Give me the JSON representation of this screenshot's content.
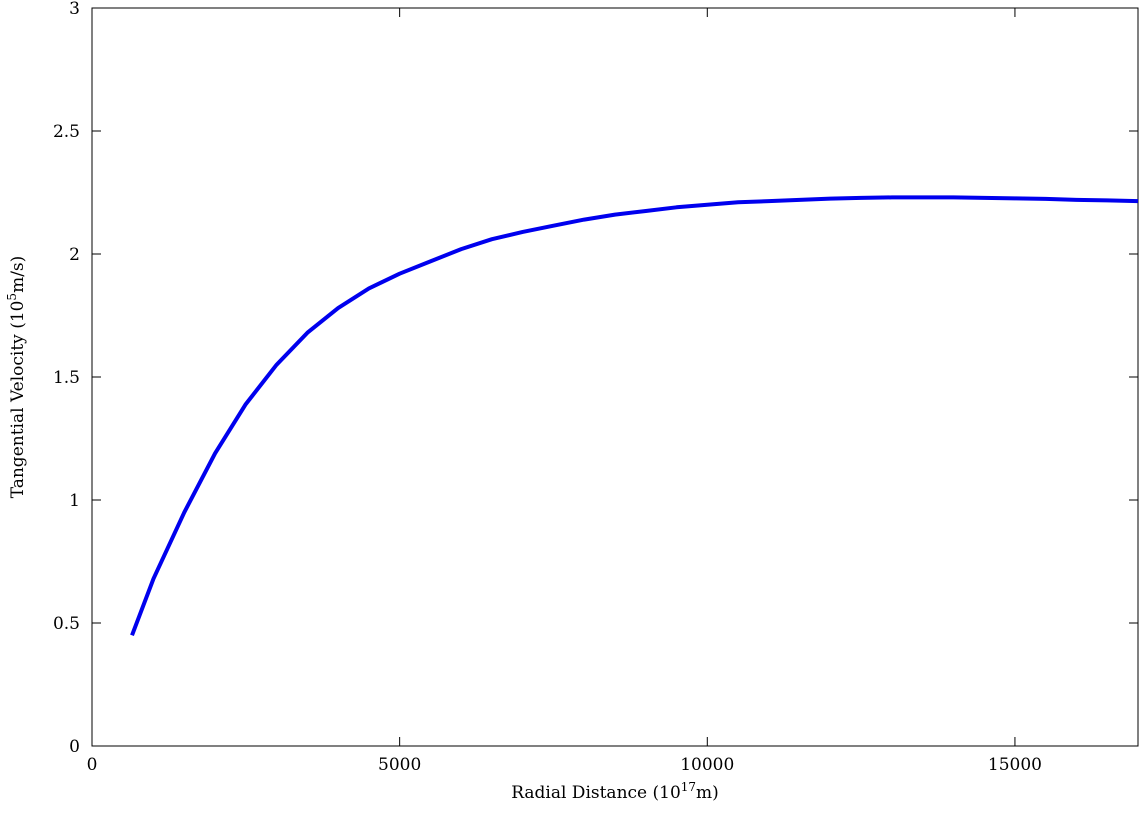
{
  "chart_data": {
    "type": "line",
    "title": "",
    "xlabel": "Radial Distance (10",
    "xlabel_sup": "17",
    "xlabel_tail": "m)",
    "ylabel": "Tangential Velocity (10",
    "ylabel_sup": "5",
    "ylabel_tail": "m/s)",
    "xlim": [
      0,
      17000
    ],
    "ylim": [
      0,
      3
    ],
    "x_ticks": [
      0,
      5000,
      10000,
      15000
    ],
    "x_tick_labels": [
      "0",
      "5000",
      "10000",
      "15000"
    ],
    "y_ticks": [
      0,
      0.5,
      1,
      1.5,
      2,
      2.5,
      3
    ],
    "y_tick_labels": [
      "0",
      "0.5",
      "1",
      "1.5",
      "2",
      "2.5",
      "3"
    ],
    "grid": false,
    "series": [
      {
        "color": "#0000ee",
        "x": [
          650,
          1000,
          1500,
          2000,
          2500,
          3000,
          3500,
          4000,
          4500,
          5000,
          5500,
          6000,
          6500,
          7000,
          7500,
          8000,
          8500,
          9000,
          9500,
          10000,
          10500,
          11000,
          11500,
          12000,
          12500,
          13000,
          13500,
          14000,
          14500,
          15000,
          15500,
          16000,
          16500,
          17000
        ],
        "y": [
          0.45,
          0.68,
          0.95,
          1.19,
          1.39,
          1.55,
          1.68,
          1.78,
          1.86,
          1.92,
          1.97,
          2.02,
          2.06,
          2.09,
          2.115,
          2.14,
          2.16,
          2.175,
          2.19,
          2.2,
          2.21,
          2.215,
          2.22,
          2.225,
          2.228,
          2.23,
          2.23,
          2.23,
          2.228,
          2.226,
          2.224,
          2.22,
          2.218,
          2.215
        ]
      }
    ]
  }
}
